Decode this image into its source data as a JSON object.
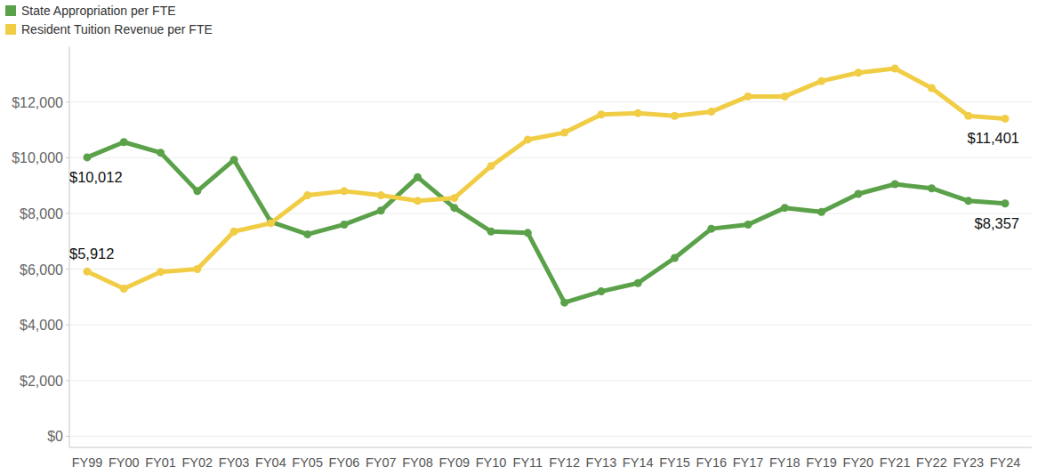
{
  "chart_data": {
    "type": "line",
    "categories": [
      "FY99",
      "FY00",
      "FY01",
      "FY02",
      "FY03",
      "FY04",
      "FY05",
      "FY06",
      "FY07",
      "FY08",
      "FY09",
      "FY10",
      "FY11",
      "FY12",
      "FY13",
      "FY14",
      "FY15",
      "FY16",
      "FY17",
      "FY18",
      "FY19",
      "FY20",
      "FY21",
      "FY22",
      "FY23",
      "FY24"
    ],
    "series": [
      {
        "name": "State Appropriation per FTE",
        "color": "#5ba14a",
        "marker": "circle",
        "values": [
          10012,
          10560,
          10180,
          8800,
          9920,
          7700,
          7250,
          7600,
          8100,
          9300,
          8200,
          7350,
          7300,
          4800,
          5200,
          5500,
          6400,
          7450,
          7600,
          8200,
          8050,
          8700,
          9050,
          8900,
          8450,
          8357
        ],
        "value_labels": [
          "$10,012",
          null,
          null,
          null,
          null,
          null,
          null,
          null,
          null,
          null,
          null,
          null,
          null,
          null,
          null,
          null,
          null,
          null,
          null,
          null,
          null,
          null,
          null,
          null,
          null,
          "$8,357"
        ]
      },
      {
        "name": "Resident Tuition Revenue per FTE",
        "color": "#f1cd46",
        "marker": "circle",
        "values": [
          5912,
          5300,
          5900,
          6000,
          7350,
          7650,
          8650,
          8800,
          8650,
          8450,
          8550,
          9700,
          10650,
          10900,
          11550,
          11600,
          11500,
          11650,
          12200,
          12200,
          12750,
          13050,
          13200,
          12500,
          11500,
          11401
        ],
        "value_labels": [
          "$5,912",
          null,
          null,
          null,
          null,
          null,
          null,
          null,
          null,
          null,
          null,
          null,
          null,
          null,
          null,
          null,
          null,
          null,
          null,
          null,
          null,
          null,
          null,
          null,
          null,
          "$11,401"
        ]
      }
    ],
    "ylim": [
      -400,
      14000
    ],
    "yticks": [
      {
        "value": 0,
        "label": "$0"
      },
      {
        "value": 2000,
        "label": "$2,000"
      },
      {
        "value": 4000,
        "label": "$4,000"
      },
      {
        "value": 6000,
        "label": "$6,000"
      },
      {
        "value": 8000,
        "label": "$8,000"
      },
      {
        "value": 10000,
        "label": "$10,000"
      },
      {
        "value": 12000,
        "label": "$12,000"
      }
    ],
    "grid": true,
    "legend": "top-left"
  }
}
